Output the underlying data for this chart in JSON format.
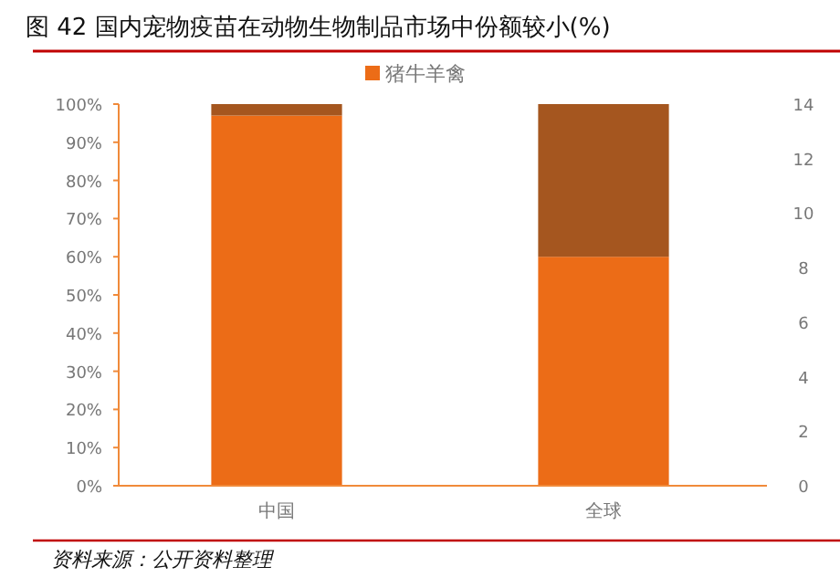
{
  "chart_data": {
    "type": "bar",
    "title": "图 42 国内宠物疫苗在动物生物制品市场中份额较小(%)",
    "annotations": [
      "资料来源：公开资料整理"
    ],
    "categories": [
      "中国",
      "全球"
    ],
    "stacked": true,
    "series": [
      {
        "name": "猪牛羊禽",
        "color": "#ec6c17",
        "values": [
          97,
          60
        ]
      },
      {
        "color": "#a5561f",
        "values": [
          3,
          40
        ]
      }
    ],
    "ylim": [
      0,
      100
    ],
    "yticks": [
      {
        "value": 0,
        "label": "0%"
      },
      {
        "value": 10,
        "label": "10%"
      },
      {
        "value": 20,
        "label": "20%"
      },
      {
        "value": 30,
        "label": "30%"
      },
      {
        "value": 40,
        "label": "40%"
      },
      {
        "value": 50,
        "label": "50%"
      },
      {
        "value": 60,
        "label": "60%"
      },
      {
        "value": 70,
        "label": "70%"
      },
      {
        "value": 80,
        "label": "80%"
      },
      {
        "value": 90,
        "label": "90%"
      },
      {
        "value": 100,
        "label": "100%"
      }
    ],
    "y2lim": [
      0,
      14
    ],
    "y2ticks": [
      0,
      2,
      4,
      6,
      8,
      10,
      12,
      14
    ],
    "legend": "top",
    "grid": false
  }
}
